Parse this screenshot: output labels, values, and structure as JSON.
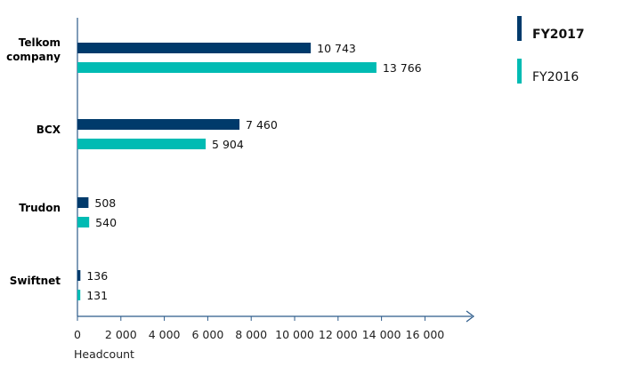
{
  "chart_data": {
    "type": "bar",
    "orientation": "horizontal",
    "categories": [
      [
        "Telkom",
        "company"
      ],
      [
        "BCX"
      ],
      [
        "Trudon"
      ],
      [
        "Swiftnet"
      ]
    ],
    "series": [
      {
        "name": "FY2017",
        "color": "#003a6b",
        "values": [
          10743,
          7460,
          508,
          136
        ],
        "labels": [
          "10 743",
          "7 460",
          "508",
          "136"
        ]
      },
      {
        "name": "FY2016",
        "color": "#00bbb3",
        "values": [
          13766,
          5904,
          540,
          131
        ],
        "labels": [
          "13 766",
          "5 904",
          "540",
          "131"
        ]
      }
    ],
    "xlabel": "Headcount",
    "xlim": [
      0,
      16000
    ],
    "xticks": [
      0,
      2000,
      4000,
      6000,
      8000,
      10000,
      12000,
      14000,
      16000
    ],
    "xtick_labels": [
      "0",
      "2 000",
      "4 000",
      "6 000",
      "8 000",
      "10 000",
      "12 000",
      "14 000",
      "16 000"
    ],
    "grid": false,
    "legend_position": "top-right",
    "axis_color": "#2c5b8a"
  }
}
